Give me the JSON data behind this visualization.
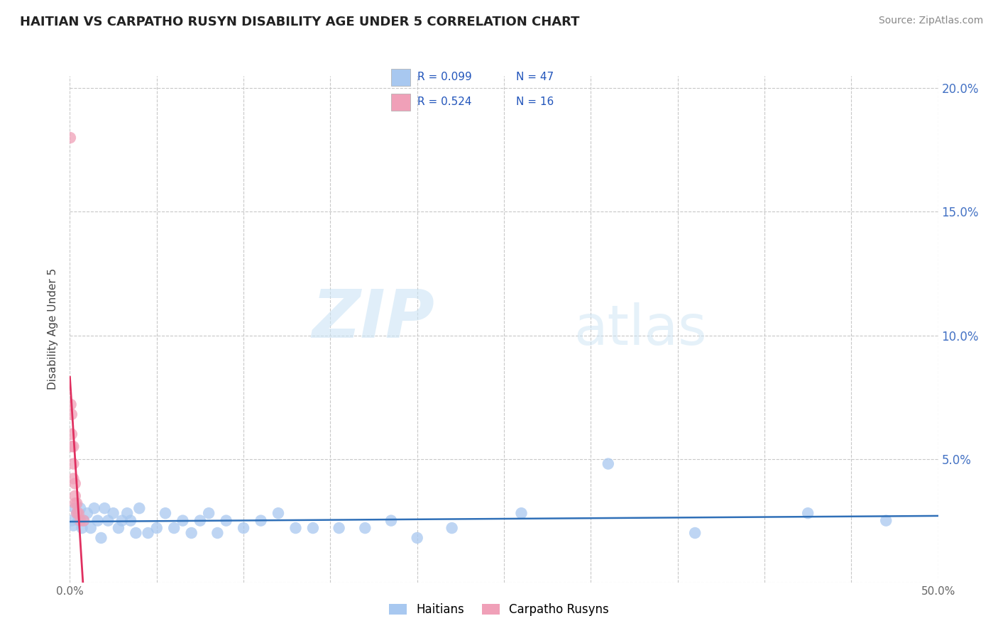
{
  "title": "HAITIAN VS CARPATHO RUSYN DISABILITY AGE UNDER 5 CORRELATION CHART",
  "source": "Source: ZipAtlas.com",
  "ylabel": "Disability Age Under 5",
  "xlim": [
    0.0,
    0.5
  ],
  "ylim": [
    0.0,
    0.205
  ],
  "xticks": [
    0.0,
    0.05,
    0.1,
    0.15,
    0.2,
    0.25,
    0.3,
    0.35,
    0.4,
    0.45,
    0.5
  ],
  "yticks": [
    0.0,
    0.05,
    0.1,
    0.15,
    0.2
  ],
  "background_color": "#ffffff",
  "grid_color": "#c8c8c8",
  "haitian_color": "#a8c8f0",
  "carpatho_color": "#f0a0b8",
  "haitian_line_color": "#3070b8",
  "carpatho_line_color": "#e03060",
  "watermark_zip": "ZIP",
  "watermark_atlas": "atlas",
  "haitian_x": [
    0.001,
    0.002,
    0.003,
    0.004,
    0.005,
    0.006,
    0.007,
    0.008,
    0.01,
    0.012,
    0.014,
    0.016,
    0.018,
    0.02,
    0.022,
    0.025,
    0.028,
    0.03,
    0.033,
    0.035,
    0.038,
    0.04,
    0.045,
    0.05,
    0.055,
    0.06,
    0.065,
    0.07,
    0.075,
    0.08,
    0.085,
    0.09,
    0.1,
    0.11,
    0.12,
    0.13,
    0.14,
    0.155,
    0.17,
    0.185,
    0.2,
    0.22,
    0.26,
    0.31,
    0.36,
    0.425,
    0.47
  ],
  "haitian_y": [
    0.025,
    0.023,
    0.03,
    0.028,
    0.025,
    0.03,
    0.022,
    0.025,
    0.028,
    0.022,
    0.03,
    0.025,
    0.018,
    0.03,
    0.025,
    0.028,
    0.022,
    0.025,
    0.028,
    0.025,
    0.02,
    0.03,
    0.02,
    0.022,
    0.028,
    0.022,
    0.025,
    0.02,
    0.025,
    0.028,
    0.02,
    0.025,
    0.022,
    0.025,
    0.028,
    0.022,
    0.022,
    0.022,
    0.022,
    0.025,
    0.018,
    0.022,
    0.028,
    0.048,
    0.02,
    0.028,
    0.025
  ],
  "carpatho_x": [
    0.0002,
    0.0005,
    0.001,
    0.001,
    0.001,
    0.002,
    0.002,
    0.002,
    0.003,
    0.003,
    0.003,
    0.004,
    0.004,
    0.005,
    0.006,
    0.008
  ],
  "carpatho_y": [
    0.18,
    0.072,
    0.068,
    0.06,
    0.055,
    0.055,
    0.048,
    0.042,
    0.04,
    0.035,
    0.032,
    0.032,
    0.028,
    0.028,
    0.025,
    0.025
  ]
}
